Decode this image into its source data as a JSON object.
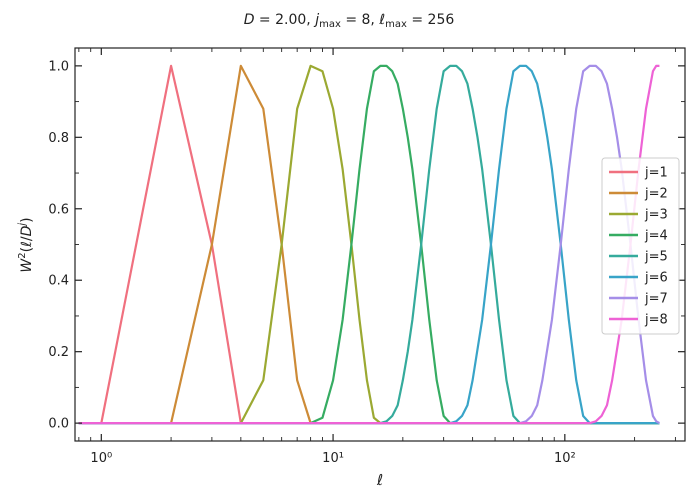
{
  "chart_data": {
    "type": "line",
    "title": "D = 2.00,  j_max = 8,  ℓ_max = 256",
    "xlabel": "ℓ",
    "ylabel": "W²(ℓ/Dʲ)",
    "xscale": "log",
    "xlim": [
      0.77,
      330
    ],
    "ylim": [
      -0.05,
      1.05
    ],
    "x_ticks": [
      1,
      10,
      100
    ],
    "x_tick_labels": [
      "10⁰",
      "10¹",
      "10²"
    ],
    "y_ticks": [
      0.0,
      0.2,
      0.4,
      0.6,
      0.8,
      1.0
    ],
    "y_tick_labels": [
      "0.0",
      "0.2",
      "0.4",
      "0.6",
      "0.8",
      "1.0"
    ],
    "grid": false,
    "legend_position": "center-right",
    "series": [
      {
        "name": "j=1",
        "color": "#f0707f",
        "x": [
          0.8,
          1,
          2,
          3,
          4,
          256
        ],
        "y": [
          0,
          0,
          1,
          0.5,
          0,
          0
        ]
      },
      {
        "name": "j=2",
        "color": "#cd8b37",
        "x": [
          0.8,
          2,
          3,
          4,
          5,
          6,
          7,
          8,
          256
        ],
        "y": [
          0,
          0,
          0.5,
          1,
          0.88,
          0.5,
          0.12,
          0,
          0
        ]
      },
      {
        "name": "j=3",
        "color": "#9ba932",
        "x": [
          0.8,
          4,
          5,
          6,
          7,
          8,
          9,
          10,
          11,
          12,
          13,
          14,
          15,
          16,
          256
        ],
        "y": [
          0,
          0,
          0.12,
          0.5,
          0.88,
          1,
          0.985,
          0.88,
          0.71,
          0.5,
          0.29,
          0.12,
          0.015,
          0,
          0
        ]
      },
      {
        "name": "j=4",
        "color": "#36ac62",
        "x": [
          0.8,
          8,
          9,
          10,
          11,
          12,
          13,
          14,
          15,
          16,
          17,
          18,
          19,
          20,
          21,
          22,
          24,
          26,
          28,
          30,
          32,
          256
        ],
        "y": [
          0,
          0,
          0.015,
          0.12,
          0.29,
          0.5,
          0.71,
          0.88,
          0.985,
          1,
          1,
          0.985,
          0.95,
          0.88,
          0.8,
          0.71,
          0.5,
          0.29,
          0.12,
          0.02,
          0,
          0
        ]
      },
      {
        "name": "j=5",
        "color": "#35ab9c",
        "x": [
          0.8,
          16,
          17,
          18,
          19,
          20,
          21,
          22,
          24,
          26,
          28,
          30,
          32,
          34,
          36,
          38,
          40,
          42,
          44,
          48,
          52,
          56,
          60,
          64,
          256
        ],
        "y": [
          0,
          0,
          0.005,
          0.02,
          0.05,
          0.12,
          0.2,
          0.29,
          0.5,
          0.71,
          0.88,
          0.985,
          1,
          1,
          0.985,
          0.95,
          0.88,
          0.8,
          0.71,
          0.5,
          0.29,
          0.12,
          0.02,
          0,
          0
        ]
      },
      {
        "name": "j=6",
        "color": "#38a4c8",
        "x": [
          0.8,
          32,
          34,
          36,
          38,
          40,
          44,
          48,
          52,
          56,
          60,
          64,
          68,
          72,
          76,
          80,
          84,
          88,
          96,
          104,
          112,
          120,
          128,
          256
        ],
        "y": [
          0,
          0,
          0.005,
          0.02,
          0.05,
          0.12,
          0.29,
          0.5,
          0.71,
          0.88,
          0.985,
          1,
          1,
          0.985,
          0.95,
          0.88,
          0.8,
          0.71,
          0.5,
          0.29,
          0.12,
          0.02,
          0,
          0
        ]
      },
      {
        "name": "j=7",
        "color": "#a58ee8",
        "x": [
          0.8,
          64,
          68,
          72,
          76,
          80,
          88,
          96,
          104,
          112,
          120,
          128,
          136,
          144,
          152,
          160,
          168,
          176,
          192,
          208,
          224,
          240,
          248,
          256
        ],
        "y": [
          0,
          0,
          0.005,
          0.02,
          0.05,
          0.12,
          0.29,
          0.5,
          0.71,
          0.88,
          0.985,
          1,
          1,
          0.985,
          0.95,
          0.88,
          0.8,
          0.71,
          0.5,
          0.29,
          0.12,
          0.02,
          0.005,
          0
        ]
      },
      {
        "name": "j=8",
        "color": "#ee62d5",
        "x": [
          0.8,
          128,
          136,
          144,
          152,
          160,
          176,
          192,
          208,
          224,
          240,
          248,
          256
        ],
        "y": [
          0,
          0,
          0.005,
          0.02,
          0.05,
          0.12,
          0.29,
          0.5,
          0.71,
          0.88,
          0.985,
          1,
          1
        ]
      }
    ]
  }
}
